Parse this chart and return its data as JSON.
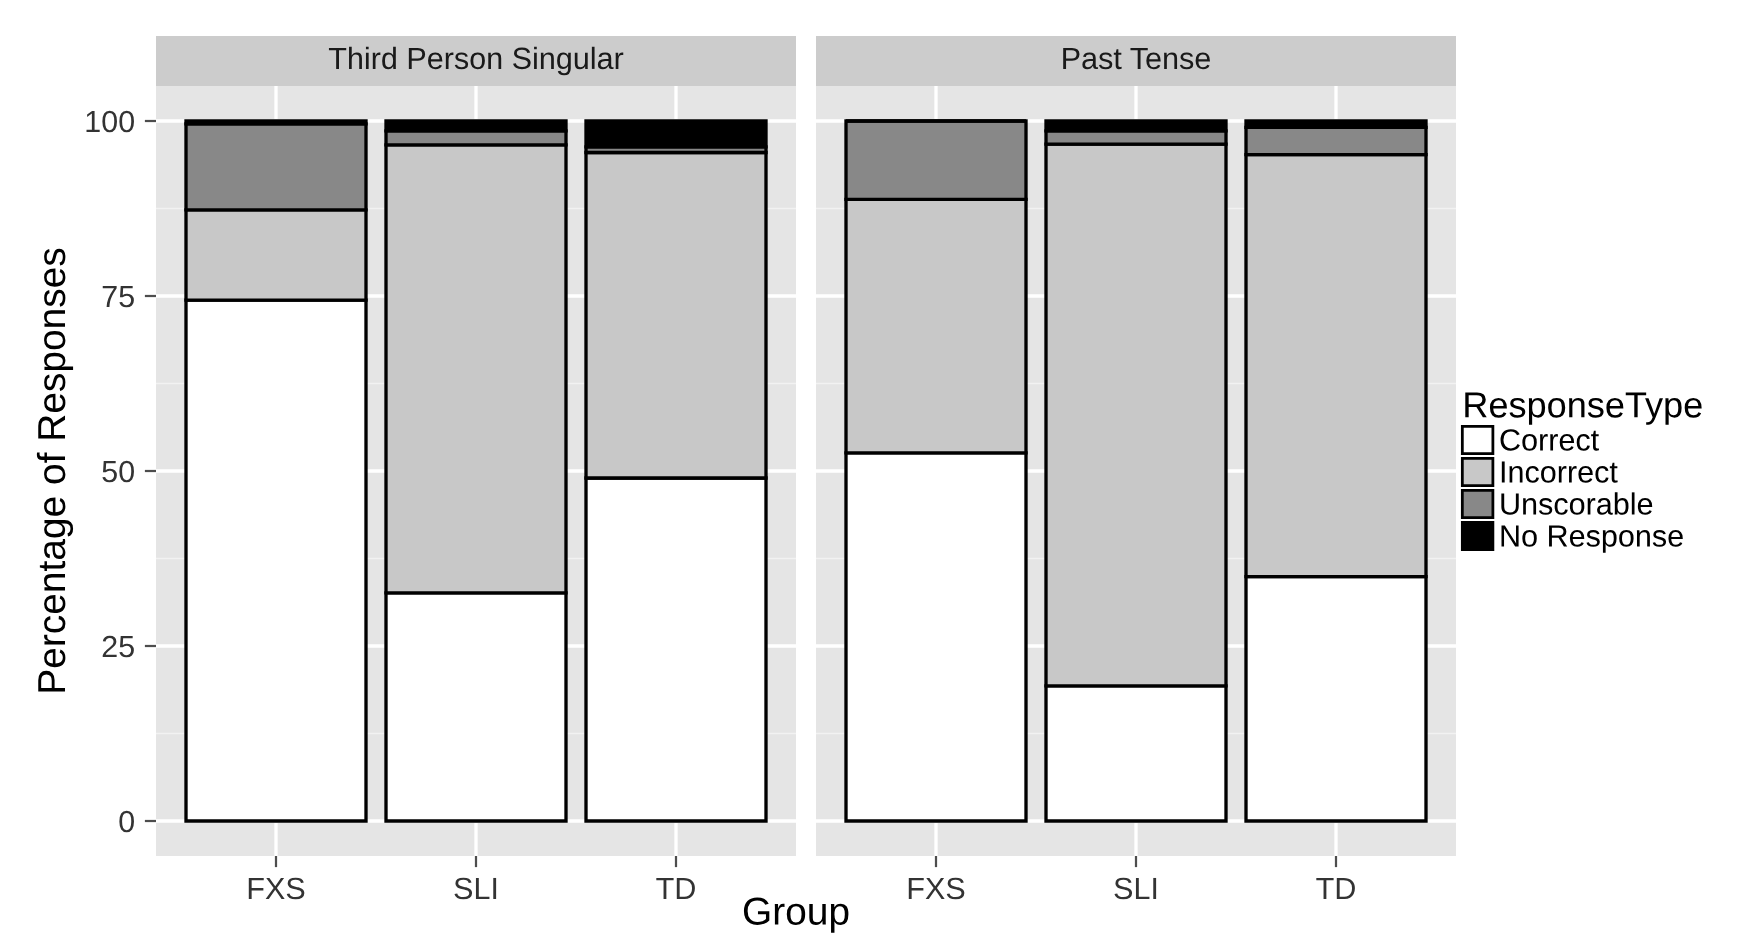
{
  "chart_data": [
    {
      "type": "bar",
      "stacked": true,
      "title": "Third Person Singular",
      "ylabel": "Percentage of Responses",
      "xlabel": "Group",
      "legend": "right",
      "legend_title": "ResponseType",
      "categories": [
        "FXS",
        "SLI",
        "TD"
      ],
      "ylim": [
        -5,
        105
      ],
      "yticks": [
        0,
        25,
        50,
        75,
        100
      ],
      "grid": true,
      "series": [
        {
          "name": "Correct",
          "color": "#ffffff",
          "values": [
            74.4,
            32.6,
            49
          ]
        },
        {
          "name": "Incorrect",
          "color": "#c8c8c8",
          "values": [
            12.9,
            64,
            46.5
          ]
        },
        {
          "name": "Unscorable",
          "color": "#888888",
          "values": [
            12.3,
            2,
            0.8
          ]
        },
        {
          "name": "No Response",
          "color": "#000000",
          "values": [
            0.4,
            1.4,
            3.7
          ]
        }
      ]
    },
    {
      "type": "bar",
      "stacked": true,
      "title": "Past Tense",
      "categories": [
        "FXS",
        "SLI",
        "TD"
      ],
      "ylim": [
        -5,
        105
      ],
      "yticks": [
        0,
        25,
        50,
        75,
        100
      ],
      "tick_labels": "x",
      "grid": true,
      "series": [
        {
          "color": "#ffffff",
          "values": [
            52.6,
            19.3,
            34.9
          ]
        },
        {
          "color": "#c8c8c8",
          "values": [
            36.2,
            77.4,
            60.3
          ]
        },
        {
          "color": "#888888",
          "values": [
            11.2,
            1.9,
            3.9
          ]
        },
        {
          "color": "#000000",
          "values": [
            0,
            1.4,
            0.9
          ]
        }
      ]
    }
  ]
}
